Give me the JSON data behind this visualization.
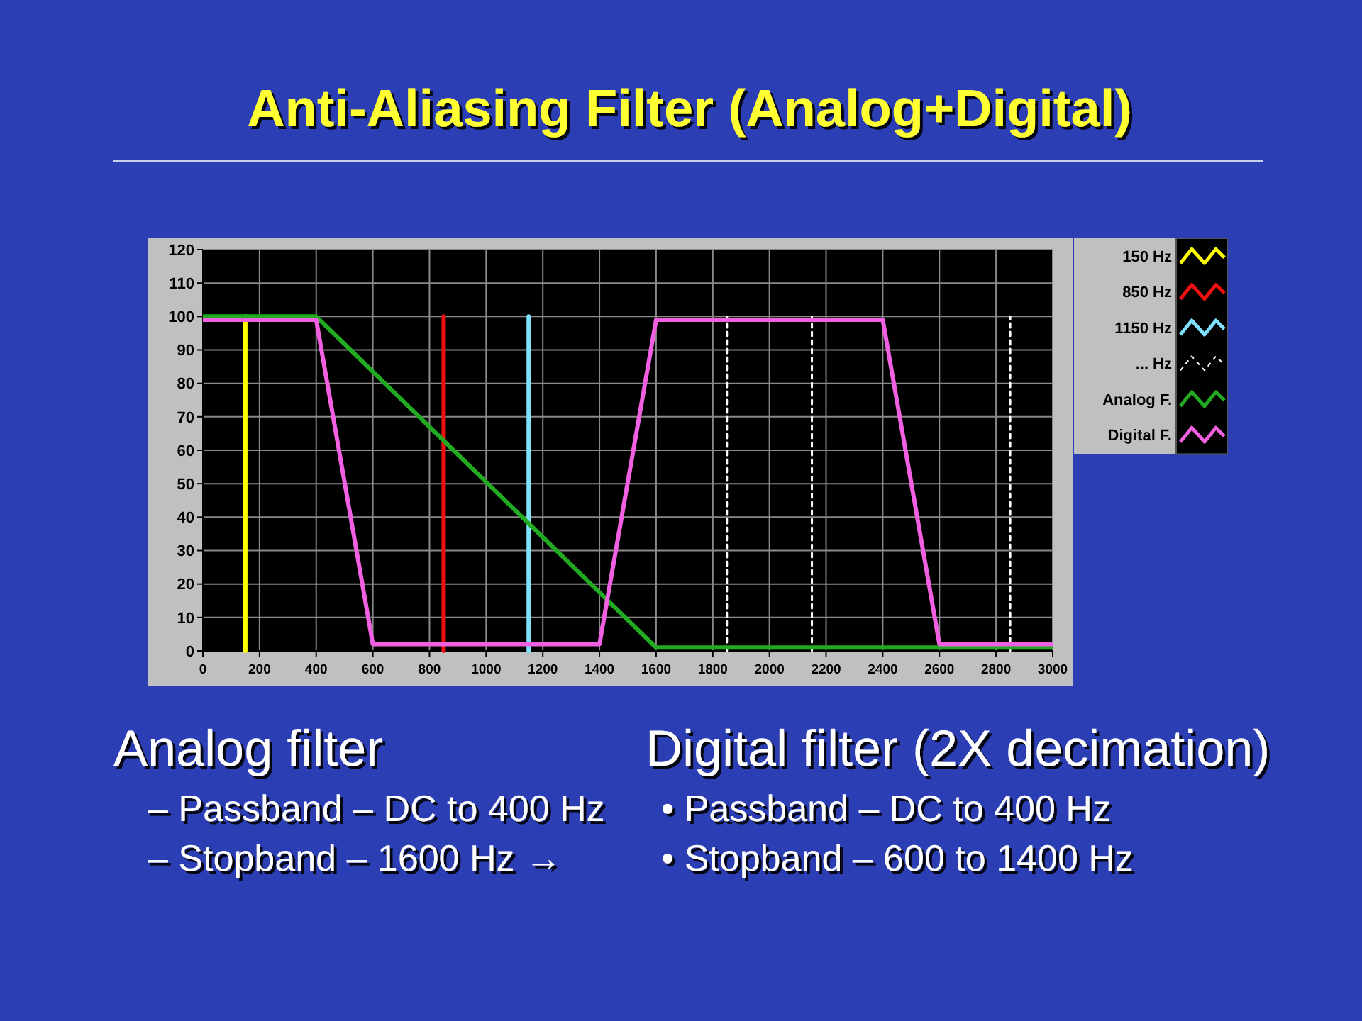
{
  "chart_data": {
    "type": "line",
    "title": "Anti-Aliasing Filter (Analog+Digital)",
    "xlim": [
      0,
      3000
    ],
    "xticks": [
      0,
      200,
      400,
      600,
      800,
      1000,
      1200,
      1400,
      1600,
      1800,
      2000,
      2200,
      2400,
      2600,
      2800,
      3000
    ],
    "ylim": [
      0,
      120
    ],
    "yticks": [
      0,
      10,
      20,
      30,
      40,
      50,
      60,
      70,
      80,
      90,
      100,
      110,
      120
    ],
    "grid": true,
    "legend": "top right",
    "line_style": "solid",
    "series": [
      {
        "name": "150 Hz",
        "color": "#ffff00",
        "x": [
          150,
          150
        ],
        "values": [
          0,
          100
        ]
      },
      {
        "name": "850 Hz",
        "color": "#ee1111",
        "x": [
          850,
          850
        ],
        "values": [
          0,
          100
        ]
      },
      {
        "name": "1150 Hz",
        "color": "#80e0ff",
        "x": [
          1150,
          1150
        ],
        "values": [
          0,
          100
        ]
      },
      {
        "name": "... Hz",
        "color": "#ffffff",
        "line_style": "dotted",
        "x": [
          1850,
          1850
        ],
        "values": [
          0,
          100
        ]
      },
      {
        "color": "#ffffff",
        "line_style": "dotted",
        "x": [
          2150,
          2150
        ],
        "values": [
          0,
          100
        ]
      },
      {
        "color": "#ffffff",
        "line_style": "dotted",
        "x": [
          2850,
          2850
        ],
        "values": [
          0,
          100
        ]
      },
      {
        "name": "Analog F.",
        "color": "#22aa22",
        "x": [
          0,
          400,
          1600,
          3000
        ],
        "values": [
          100,
          100,
          1,
          1
        ]
      },
      {
        "name": "Digital F.",
        "color": "#f060e0",
        "x": [
          0,
          400,
          600,
          1400,
          1600,
          2400,
          2600,
          3000
        ],
        "values": [
          99,
          99,
          2,
          2,
          99,
          99,
          2,
          2
        ]
      }
    ],
    "annotations": [
      "Analog filter",
      "– Passband – DC to 400 Hz",
      "– Stopband – 1600 Hz →",
      "Digital filter (2X decimation)",
      "• Passband – DC to 400 Hz",
      "• Stopband – 600 to 1400 Hz"
    ]
  }
}
